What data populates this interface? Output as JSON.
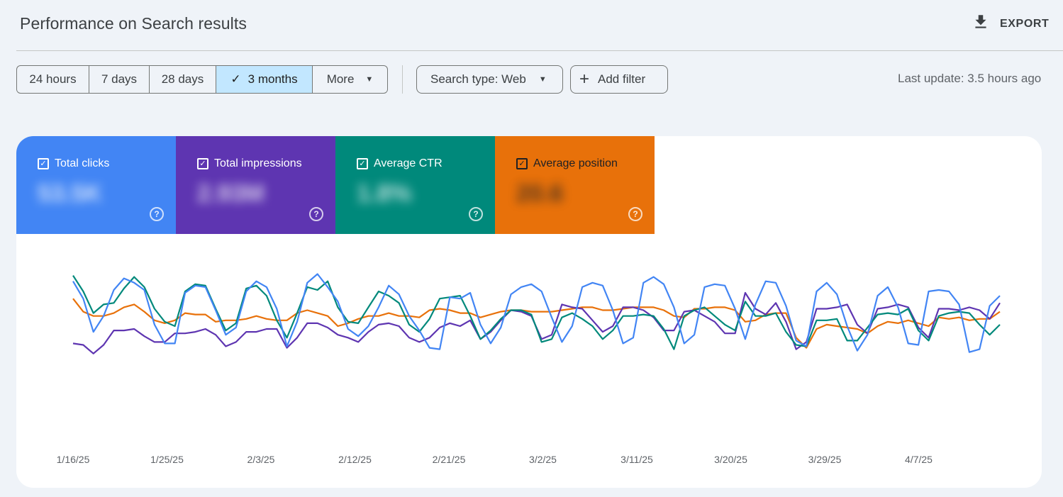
{
  "header": {
    "title": "Performance on Search results",
    "export_label": "EXPORT"
  },
  "filters": {
    "ranges": [
      {
        "label": "24 hours",
        "selected": false
      },
      {
        "label": "7 days",
        "selected": false
      },
      {
        "label": "28 days",
        "selected": false
      },
      {
        "label": "3 months",
        "selected": true
      },
      {
        "label": "More",
        "selected": false
      }
    ],
    "search_type_label": "Search type: Web",
    "add_filter_label": "Add filter",
    "last_update": "Last update: 3.5 hours ago"
  },
  "metrics": [
    {
      "label": "Total clicks",
      "value": "53.5K",
      "color": "#4285f4",
      "checked": true
    },
    {
      "label": "Total impressions",
      "value": "2.93M",
      "color": "#5e35b1",
      "checked": true
    },
    {
      "label": "Average CTR",
      "value": "1.8%",
      "color": "#00897b",
      "checked": true
    },
    {
      "label": "Average position",
      "value": "20.6",
      "color": "#e8710a",
      "checked": true
    }
  ],
  "chart_data": {
    "type": "line",
    "x_tick_labels": [
      "1/16/25",
      "1/25/25",
      "2/3/25",
      "2/12/25",
      "2/21/25",
      "3/2/25",
      "3/11/25",
      "3/20/25",
      "3/29/25",
      "4/7/25"
    ],
    "y_axis_labels_visible": false,
    "grid": false,
    "note_units": "relative (0-100, higher = higher on chart); no axis values printed",
    "series": [
      {
        "name": "Total clicks",
        "color": "#4285f4",
        "values": [
          82,
          70,
          47,
          58,
          76,
          84,
          81,
          76,
          52,
          39,
          39,
          74,
          79,
          78,
          62,
          45,
          50,
          75,
          82,
          78,
          63,
          37,
          54,
          81,
          87,
          78,
          68,
          49,
          44,
          51,
          64,
          79,
          73,
          58,
          48,
          36,
          35,
          71,
          70,
          74,
          52,
          39,
          50,
          73,
          78,
          80,
          75,
          57,
          40,
          51,
          78,
          81,
          79,
          62,
          39,
          43,
          81,
          85,
          80,
          64,
          39,
          45,
          78,
          80,
          79,
          63,
          42,
          66,
          82,
          81,
          65,
          41,
          37,
          75,
          81,
          73,
          51,
          34,
          45,
          72,
          78,
          64,
          39,
          38,
          75,
          76,
          75,
          66,
          33,
          35,
          65,
          72
        ]
      },
      {
        "name": "Total impressions",
        "color": "#5e35b1",
        "values": [
          39,
          38,
          32,
          38,
          48,
          48,
          49,
          44,
          40,
          40,
          46,
          46,
          47,
          49,
          45,
          37,
          40,
          47,
          47,
          49,
          49,
          36,
          43,
          53,
          53,
          50,
          45,
          43,
          40,
          47,
          52,
          53,
          51,
          43,
          40,
          43,
          50,
          53,
          51,
          55,
          42,
          47,
          55,
          62,
          61,
          58,
          42,
          45,
          66,
          64,
          63,
          55,
          47,
          51,
          64,
          64,
          62,
          57,
          48,
          48,
          61,
          62,
          58,
          54,
          46,
          46,
          74,
          63,
          59,
          67,
          54,
          35,
          40,
          63,
          63,
          64,
          66,
          52,
          46,
          63,
          64,
          66,
          64,
          50,
          43,
          63,
          63,
          62,
          64,
          62,
          56,
          67
        ]
      },
      {
        "name": "Average CTR",
        "color": "#00897b",
        "values": [
          86,
          75,
          60,
          66,
          67,
          77,
          85,
          78,
          63,
          54,
          51,
          75,
          80,
          79,
          63,
          48,
          53,
          77,
          79,
          72,
          55,
          43,
          60,
          78,
          76,
          82,
          64,
          54,
          53,
          64,
          75,
          72,
          67,
          52,
          47,
          56,
          70,
          71,
          72,
          58,
          42,
          48,
          56,
          62,
          62,
          59,
          40,
          42,
          57,
          60,
          56,
          51,
          42,
          48,
          58,
          58,
          59,
          58,
          49,
          35,
          58,
          62,
          64,
          58,
          52,
          48,
          68,
          58,
          58,
          60,
          47,
          38,
          37,
          55,
          55,
          56,
          41,
          41,
          50,
          59,
          60,
          59,
          63,
          48,
          41,
          58,
          60,
          61,
          60,
          52,
          45,
          52
        ]
      },
      {
        "name": "Average position",
        "color": "#e8710a",
        "values": [
          70,
          61,
          58,
          58,
          60,
          64,
          66,
          61,
          55,
          53,
          55,
          60,
          59,
          59,
          54,
          55,
          55,
          56,
          58,
          56,
          55,
          55,
          60,
          62,
          60,
          58,
          51,
          53,
          56,
          58,
          58,
          60,
          58,
          58,
          57,
          62,
          63,
          62,
          60,
          60,
          57,
          59,
          61,
          62,
          62,
          61,
          61,
          61,
          62,
          63,
          64,
          64,
          62,
          62,
          63,
          64,
          64,
          64,
          62,
          58,
          57,
          63,
          63,
          64,
          64,
          62,
          54,
          55,
          59,
          60,
          60,
          43,
          36,
          49,
          52,
          51,
          50,
          49,
          46,
          51,
          54,
          53,
          55,
          53,
          51,
          57,
          56,
          57,
          55,
          56,
          56,
          61
        ]
      }
    ]
  }
}
